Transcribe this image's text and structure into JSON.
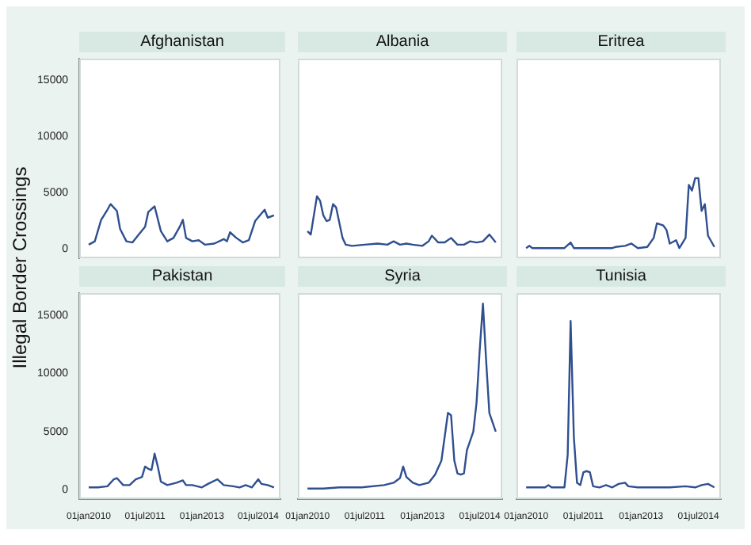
{
  "chart_data": [
    {
      "type": "line",
      "title": "Afghanistan",
      "ylabel": "Illegal Border Crossings",
      "tick_labels": "y",
      "xlim": [
        "2009-10-01",
        "2015-02-01"
      ],
      "ylim": [
        -800,
        16900
      ],
      "yticks": [
        0,
        5000,
        10000,
        15000
      ],
      "series": [
        {
          "color": "#2f4f8f",
          "x": [
            "2010-01",
            "2010-03",
            "2010-05",
            "2010-07",
            "2010-08",
            "2010-10",
            "2010-11",
            "2011-01",
            "2011-03",
            "2011-05",
            "2011-07",
            "2011-08",
            "2011-10",
            "2011-12",
            "2012-02",
            "2012-04",
            "2012-06",
            "2012-07",
            "2012-08",
            "2012-10",
            "2012-12",
            "2013-02",
            "2013-05",
            "2013-08",
            "2013-09",
            "2013-10",
            "2013-12",
            "2014-02",
            "2014-04",
            "2014-06",
            "2014-09",
            "2014-10",
            "2014-12"
          ],
          "values": [
            400,
            700,
            2600,
            3500,
            4000,
            3400,
            1800,
            700,
            600,
            1300,
            2000,
            3300,
            3800,
            1600,
            700,
            1000,
            2000,
            2600,
            1000,
            700,
            800,
            400,
            500,
            900,
            700,
            1500,
            1000,
            600,
            800,
            2500,
            3500,
            2800,
            3000
          ]
        }
      ]
    },
    {
      "type": "line",
      "title": "Albania",
      "tick_labels": false,
      "xlim": [
        "2009-10-01",
        "2015-02-01"
      ],
      "ylim": [
        -800,
        16900
      ],
      "series": [
        {
          "color": "#2f4f8f",
          "x": [
            "2010-01",
            "2010-02",
            "2010-04",
            "2010-05",
            "2010-06",
            "2010-07",
            "2010-08",
            "2010-09",
            "2010-10",
            "2010-12",
            "2011-01",
            "2011-03",
            "2011-07",
            "2011-11",
            "2012-02",
            "2012-04",
            "2012-06",
            "2012-08",
            "2012-10",
            "2013-01",
            "2013-03",
            "2013-04",
            "2013-06",
            "2013-08",
            "2013-10",
            "2013-12",
            "2014-02",
            "2014-04",
            "2014-06",
            "2014-08",
            "2014-10",
            "2014-12"
          ],
          "values": [
            1600,
            1300,
            4700,
            4300,
            3000,
            2500,
            2600,
            4000,
            3700,
            1000,
            400,
            300,
            400,
            500,
            400,
            700,
            400,
            500,
            400,
            300,
            700,
            1200,
            600,
            600,
            1000,
            400,
            400,
            700,
            600,
            700,
            1300,
            600
          ]
        }
      ]
    },
    {
      "type": "line",
      "title": "Eritrea",
      "tick_labels": false,
      "xlim": [
        "2009-10-01",
        "2015-02-01"
      ],
      "ylim": [
        -800,
        16900
      ],
      "series": [
        {
          "color": "#2f4f8f",
          "x": [
            "2010-01",
            "2010-02",
            "2010-03",
            "2011-01",
            "2011-03",
            "2011-04",
            "2012-04",
            "2012-05",
            "2012-08",
            "2012-10",
            "2012-12",
            "2013-03",
            "2013-05",
            "2013-06",
            "2013-08",
            "2013-09",
            "2013-10",
            "2013-12",
            "2014-01",
            "2014-03",
            "2014-04",
            "2014-05",
            "2014-06",
            "2014-07",
            "2014-08",
            "2014-09",
            "2014-10",
            "2014-12"
          ],
          "values": [
            100,
            300,
            100,
            100,
            600,
            100,
            100,
            200,
            300,
            500,
            100,
            200,
            1000,
            2300,
            2100,
            1700,
            500,
            800,
            100,
            1000,
            5700,
            5200,
            6300,
            6300,
            3400,
            4000,
            1200,
            200
          ]
        }
      ]
    },
    {
      "type": "line",
      "title": "Pakistan",
      "xlim": [
        "2009-10-01",
        "2015-02-01"
      ],
      "ylim": [
        -800,
        16900
      ],
      "yticks": [
        0,
        5000,
        10000,
        15000
      ],
      "xticks": [
        {
          "value": "2010-01-01",
          "label": "01jan2010"
        },
        {
          "value": "2011-07-01",
          "label": "01jul2011"
        },
        {
          "value": "2013-01-01",
          "label": "01jan2013"
        },
        {
          "value": "2014-07-01",
          "label": "01jul2014"
        }
      ],
      "series": [
        {
          "color": "#2f4f8f",
          "x": [
            "2010-01",
            "2010-04",
            "2010-07",
            "2010-09",
            "2010-10",
            "2010-12",
            "2011-02",
            "2011-04",
            "2011-06",
            "2011-07",
            "2011-08",
            "2011-09",
            "2011-10",
            "2011-11",
            "2011-12",
            "2012-02",
            "2012-05",
            "2012-07",
            "2012-08",
            "2012-10",
            "2013-01",
            "2013-03",
            "2013-06",
            "2013-08",
            "2013-11",
            "2014-01",
            "2014-03",
            "2014-05",
            "2014-07",
            "2014-08",
            "2014-10",
            "2014-12"
          ],
          "values": [
            200,
            200,
            300,
            900,
            1000,
            400,
            400,
            900,
            1100,
            2000,
            1800,
            1700,
            3100,
            2000,
            700,
            400,
            600,
            800,
            400,
            400,
            200,
            500,
            900,
            400,
            300,
            200,
            400,
            200,
            900,
            500,
            400,
            200
          ]
        }
      ]
    },
    {
      "type": "line",
      "title": "Syria",
      "tick_labels": "x",
      "xlim": [
        "2009-10-01",
        "2015-02-01"
      ],
      "ylim": [
        -800,
        16900
      ],
      "xticks": [
        {
          "value": "2010-01-01",
          "label": "01jan2010"
        },
        {
          "value": "2011-07-01",
          "label": "01jul2011"
        },
        {
          "value": "2013-01-01",
          "label": "01jan2013"
        },
        {
          "value": "2014-07-01",
          "label": "01jul2014"
        }
      ],
      "series": [
        {
          "color": "#2f4f8f",
          "x": [
            "2010-01",
            "2010-06",
            "2010-11",
            "2011-06",
            "2012-01",
            "2012-04",
            "2012-06",
            "2012-07",
            "2012-08",
            "2012-10",
            "2012-12",
            "2013-03",
            "2013-05",
            "2013-07",
            "2013-09",
            "2013-10",
            "2013-11",
            "2013-12",
            "2014-01",
            "2014-02",
            "2014-03",
            "2014-05",
            "2014-06",
            "2014-07",
            "2014-08",
            "2014-09",
            "2014-10",
            "2014-12"
          ],
          "values": [
            100,
            100,
            200,
            200,
            400,
            600,
            1000,
            2000,
            1100,
            600,
            400,
            600,
            1300,
            2500,
            6600,
            6400,
            2500,
            1400,
            1300,
            1400,
            3400,
            5000,
            7500,
            12000,
            16000,
            11000,
            6600,
            5000
          ]
        }
      ]
    },
    {
      "type": "line",
      "title": "Tunisia",
      "tick_labels": "x",
      "xlim": [
        "2009-10-01",
        "2015-02-01"
      ],
      "ylim": [
        -800,
        16900
      ],
      "xticks": [
        {
          "value": "2010-01-01",
          "label": "01jan2010"
        },
        {
          "value": "2011-07-01",
          "label": "01jul2011"
        },
        {
          "value": "2013-01-01",
          "label": "01jan2013"
        },
        {
          "value": "2014-07-01",
          "label": "01jul2014"
        }
      ],
      "series": [
        {
          "color": "#2f4f8f",
          "x": [
            "2010-01",
            "2010-07",
            "2010-08",
            "2010-09",
            "2011-01",
            "2011-02",
            "2011-03",
            "2011-04",
            "2011-05",
            "2011-06",
            "2011-07",
            "2011-08",
            "2011-09",
            "2011-10",
            "2011-12",
            "2012-02",
            "2012-04",
            "2012-06",
            "2012-08",
            "2012-09",
            "2012-12",
            "2013-10",
            "2014-03",
            "2014-06",
            "2014-08",
            "2014-10",
            "2014-12"
          ],
          "values": [
            200,
            200,
            400,
            200,
            200,
            3000,
            14500,
            4500,
            600,
            400,
            1500,
            1600,
            1500,
            300,
            200,
            400,
            200,
            500,
            600,
            300,
            200,
            200,
            300,
            200,
            400,
            500,
            200
          ]
        }
      ]
    }
  ]
}
